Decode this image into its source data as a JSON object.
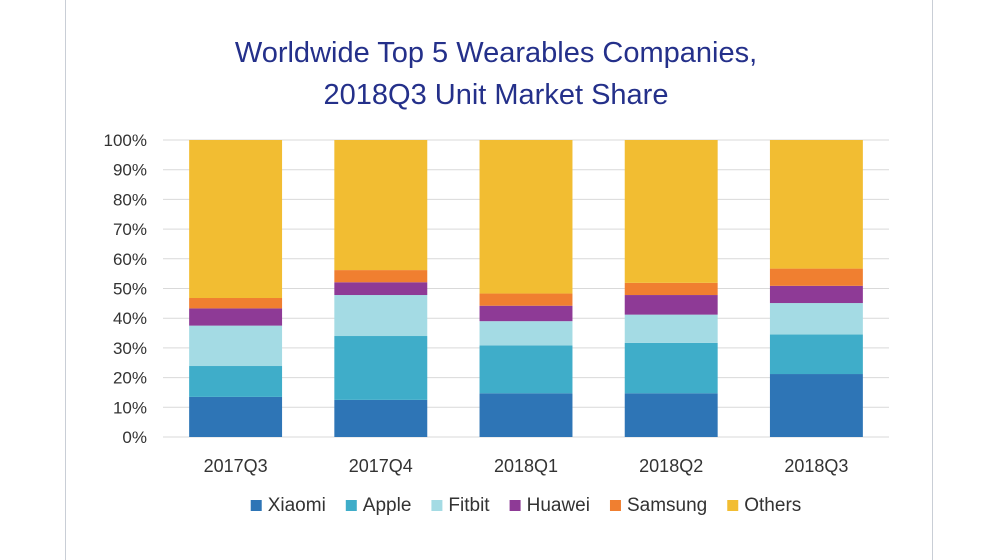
{
  "chart_data": {
    "type": "bar",
    "stacked": true,
    "title": "Worldwide Top 5 Wearables Companies,",
    "subtitle": "2018Q3 Unit Market Share",
    "xlabel": "",
    "ylabel": "",
    "ylim": [
      0,
      100
    ],
    "yticks": [
      "0%",
      "10%",
      "20%",
      "30%",
      "40%",
      "50%",
      "60%",
      "70%",
      "80%",
      "90%",
      "100%"
    ],
    "grid": true,
    "legend_position": "bottom",
    "categories": [
      "2017Q3",
      "2017Q4",
      "2018Q1",
      "2018Q2",
      "2018Q3"
    ],
    "series": [
      {
        "name": "Xiaomi",
        "color": "#2e75b6",
        "values": [
          13.5,
          12.5,
          14.7,
          14.7,
          21.2
        ]
      },
      {
        "name": "Apple",
        "color": "#3fadc9",
        "values": [
          10.4,
          21.5,
          16.1,
          17.0,
          13.3
        ]
      },
      {
        "name": "Fitbit",
        "color": "#a4dbe4",
        "values": [
          13.6,
          13.8,
          8.2,
          9.5,
          10.6
        ]
      },
      {
        "name": "Huawei",
        "color": "#8e3a96",
        "values": [
          5.8,
          4.3,
          5.2,
          6.6,
          5.8
        ]
      },
      {
        "name": "Samsung",
        "color": "#f07f30",
        "values": [
          3.5,
          4.1,
          4.1,
          4.1,
          5.8
        ]
      },
      {
        "name": "Others",
        "color": "#f2bd32",
        "values": [
          53.2,
          43.8,
          51.7,
          48.1,
          43.3
        ]
      }
    ]
  }
}
